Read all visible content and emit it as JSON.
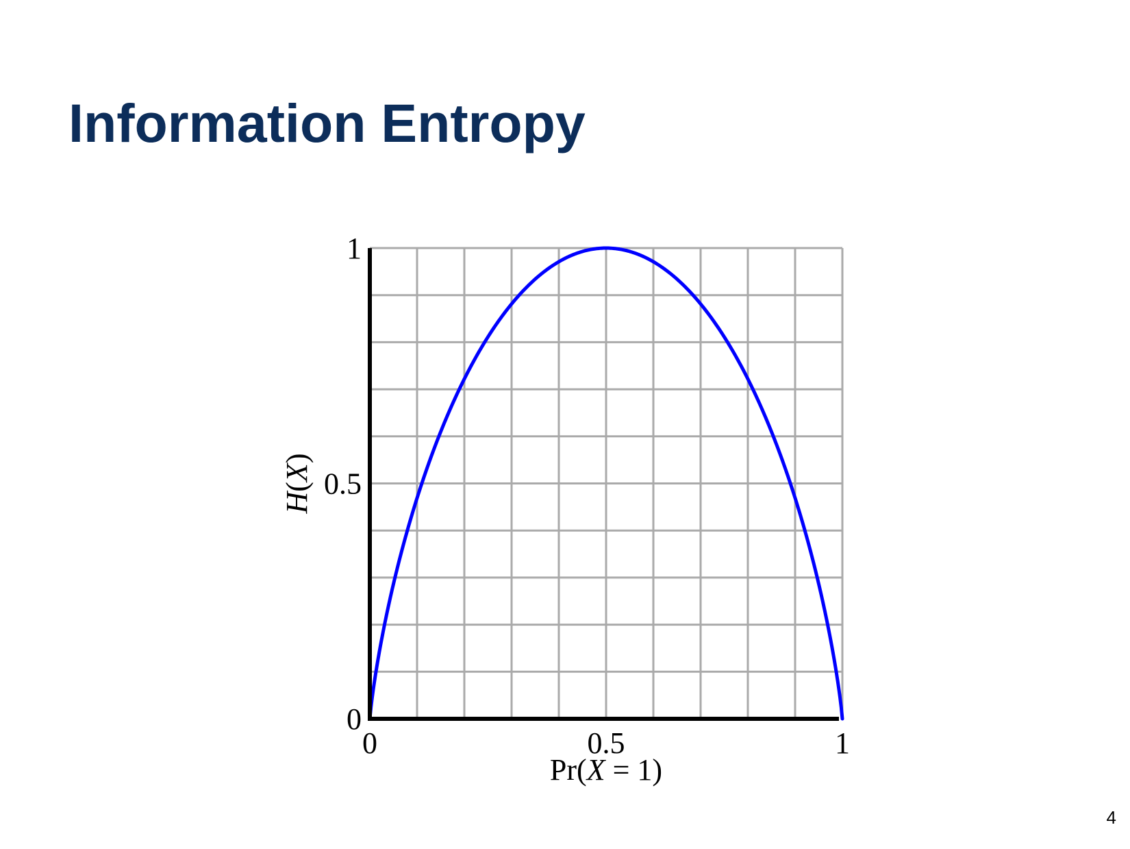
{
  "slide": {
    "title": "Information Entropy",
    "page_number": "4"
  },
  "chart_data": {
    "type": "line",
    "xlabel": "Pr(X = 1)",
    "ylabel": "H(X)",
    "xlim": [
      0,
      1
    ],
    "ylim": [
      0,
      1
    ],
    "x_ticks": [
      0,
      0.5,
      1
    ],
    "y_ticks": [
      0,
      0.5,
      1
    ],
    "x_tick_labels": [
      "0",
      "0.5",
      "1"
    ],
    "y_tick_labels": [
      "0",
      "0.5",
      "1"
    ],
    "grid": true,
    "grid_step": 0.1,
    "series": [
      {
        "function": "binary entropy",
        "x": [
          0,
          0.01,
          0.05,
          0.1,
          0.15,
          0.2,
          0.25,
          0.3,
          0.35,
          0.4,
          0.45,
          0.5,
          0.55,
          0.6,
          0.65,
          0.7,
          0.75,
          0.8,
          0.85,
          0.9,
          0.95,
          0.99,
          1
        ],
        "y": [
          0,
          0.081,
          0.286,
          0.469,
          0.61,
          0.722,
          0.811,
          0.881,
          0.934,
          0.971,
          0.993,
          1,
          0.993,
          0.971,
          0.934,
          0.881,
          0.811,
          0.722,
          0.61,
          0.469,
          0.286,
          0.081,
          0
        ],
        "color": "#0000ff"
      }
    ],
    "colors": {
      "grid": "#aaaaaa",
      "axes": "#000000",
      "curve": "#0000ff"
    }
  }
}
